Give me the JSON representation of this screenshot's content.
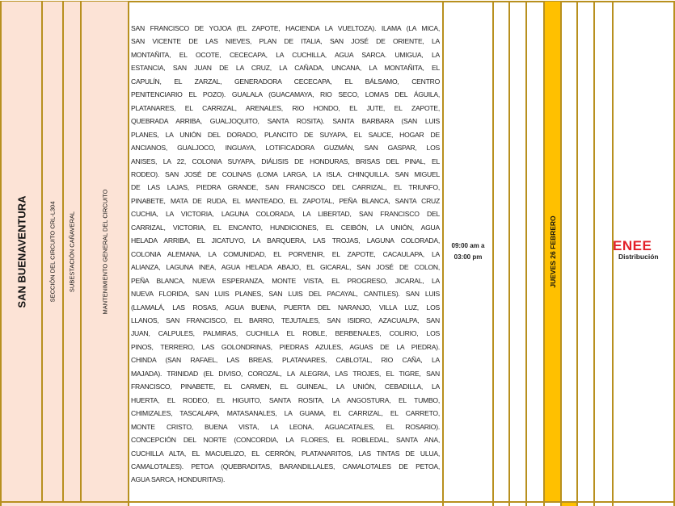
{
  "row": {
    "municipality": "SAN BUENAVENTURA",
    "circuit_section": "SECCIÓN DEL CIRCUITO CRL-L304",
    "substation": "SUBESTACIÓN CAÑAVERAL",
    "work": "MANTENIMIENTO GENERAL DEL CIRCUITO",
    "affected_areas_lines": [
      "SAN FRANCISCO DE YOJOA (EL ZAPOTE, HACIENDA LA VUELTOZA). ILAMA (LA MICA,",
      "SAN VICENTE DE LAS NIEVES, PLAN DE ITALIA, SAN JOSÉ DE ORIENTE, LA",
      "MONTAÑITA, EL OCOTE, CECECAPA, LA CUCHILLA, AGUA SARCA. UMIGUA, LA",
      "ESTANCIA, SAN JUAN DE LA CRUZ, LA CAÑADA, UNCANA, LA MONTAÑITA, EL",
      "CAPULÍN, EL ZARZAL, GENERADORA CECECAPA, EL BÁLSAMO, CENTRO",
      "PENITENCIARIO EL POZO). GUALALA (GUACAMAYA, RIO SECO, LOMAS DEL ÁGUILA,",
      "PLATANARES, EL CARRIZAL, ARENALES, RIO HONDO, EL JUTE, EL ZAPOTE,",
      "QUEBRADA ARRIBA, GUALJOQUITO, SANTA ROSITA). SANTA BARBARA (SAN LUIS",
      "PLANES, LA UNIÓN DEL DORADO, PLANCITO DE SUYAPA, EL SAUCE, HOGAR DE",
      "ANCIANOS, GUALJOCO, INGUAYA, LOTIFICADORA GUZMÁN, SAN GASPAR, LOS",
      "ANISES, LA 22, COLONIA SUYAPA, DIÁLISIS DE HONDURAS, BRISAS DEL PINAL, EL",
      "RODEO). SAN JOSÉ DE COLINAS (LOMA LARGA, LA ISLA. CHINQUILLA. SAN MIGUEL",
      "DE LAS LAJAS, PIEDRA GRANDE, SAN FRANCISCO DEL CARRIZAL, EL TRIUNFO,",
      "PINABETE, MATA DE RUDA, EL MANTEADO, EL ZAPOTAL, PEÑA BLANCA, SANTA CRUZ",
      "CUCHIA, LA VICTORIA, LAGUNA COLORADA, LA LIBERTAD, SAN FRANCISCO DEL",
      "CARRIZAL, VICTORIA, EL ENCANTO, HUNDICIONES, EL CEIBÓN, LA UNIÓN, AGUA",
      "HELADA ARRIBA, EL JICATUYO, LA BARQUERA, LAS TROJAS, LAGUNA COLORADA,",
      "COLONIA ALEMANA, LA COMUNIDAD, EL PORVENIR, EL ZAPOTE, CACAULAPA, LA",
      "ALIANZA, LAGUNA INEA, AGUA HELADA ABAJO, EL GICARAL, SAN JOSÉ DE COLON,",
      "PEÑA BLANCA, NUEVA ESPERANZA, MONTE VISTA, EL PROGRESO, JICARAL, LA",
      "NUEVA FLORIDA, SAN LUIS PLANES, SAN LUIS DEL PACAYAL, CANTILES). SAN LUIS",
      "(LLAMALÁ, LAS ROSAS, AGUA BUENA, PUERTA DEL NARANJO, VILLA LUZ, LOS",
      "LLANOS, SAN FRANCISCO, EL BARRO, TEJUTALES, SAN ISIDRO, AZACUALPA, SAN",
      "JUAN, CALPULES, PALMIRAS, CUCHILLA EL ROBLE, BERBENALES, COLIRIO, LOS",
      "PINOS, TERRERO, LAS GOLONDRINAS, PIEDRAS AZULES, AGUAS DE LA PIEDRA).",
      "CHINDA (SAN RAFAEL, LAS BREAS, PLATANARES, CABLOTAL, RIO CAÑA, LA",
      "MAJADA). TRINIDAD (EL DIVISO, COROZAL, LA ALEGRIA, LAS TROJES, EL TIGRE, SAN",
      "FRANCISCO, PINABETE, EL CARMEN, EL GUINEAL, LA UNIÓN, CEBADILLA, LA",
      "HUERTA, EL RODEO, EL HIGUITO, SANTA ROSITA, LA ANGOSTURA, EL TUMBO,",
      "CHIMIZALES, TASCALAPA, MATASANALES, LA GUAMA, EL CARRIZAL, EL CARRETO,",
      "MONTE CRISTO, BUENA VISTA, LA LEONA, AGUACATALES, EL ROSARIO).",
      "CONCEPCIÓN DEL NORTE (CONCORDIA, LA FLORES, EL ROBLEDAL, SANTA ANA,",
      "CUCHILLA ALTA, EL MACUELIZO, EL CERRÓN, PLATANARITOS, LAS TINTAS DE ULUA,",
      "CAMALOTALES). PETOA (QUEBRADITAS, BARANDILLALES, CAMALOTALES DE PETOA,",
      "AGUA SARCA, HONDURITAS)."
    ],
    "time_start": "09:00 am a",
    "time_end": "03:00 pm",
    "date": "JUEVES 26 FEBRERO"
  },
  "logo": {
    "brand": "ENEE",
    "sub": "Distribución"
  },
  "colors": {
    "border": "#b8901f",
    "peach": "#fce3d6",
    "highlight": "#ffc000",
    "brand_red": "#e3202a"
  }
}
